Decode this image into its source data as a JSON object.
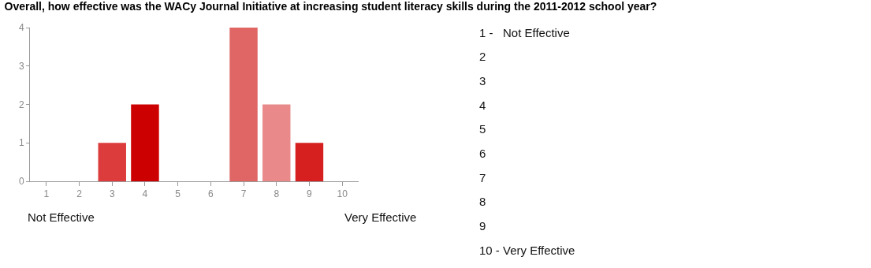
{
  "chart_data": {
    "type": "bar",
    "title": "Overall, how effective was the WACy Journal Initiative at increasing student literacy skills during the 2011-2012 school year?",
    "categories": [
      "1",
      "2",
      "3",
      "4",
      "5",
      "6",
      "7",
      "8",
      "9",
      "10"
    ],
    "values": [
      0,
      0,
      1,
      2,
      0,
      0,
      4,
      2,
      1,
      0
    ],
    "colors": [
      "#cc0000",
      "#cc0000",
      "#dc3c3c",
      "#cc0000",
      "#cc0000",
      "#cc0000",
      "#e06666",
      "#ea8989",
      "#d62020",
      "#cc0000"
    ],
    "ylim": [
      0,
      4
    ],
    "yticks": [
      0,
      1,
      2,
      3,
      4
    ],
    "annotations": [
      "Not Effective",
      "Very Effective",
      "1 -   Not Effective",
      "2",
      "3",
      "4",
      "5",
      "6",
      "7",
      "8",
      "9",
      "10 - Very Effective"
    ]
  }
}
